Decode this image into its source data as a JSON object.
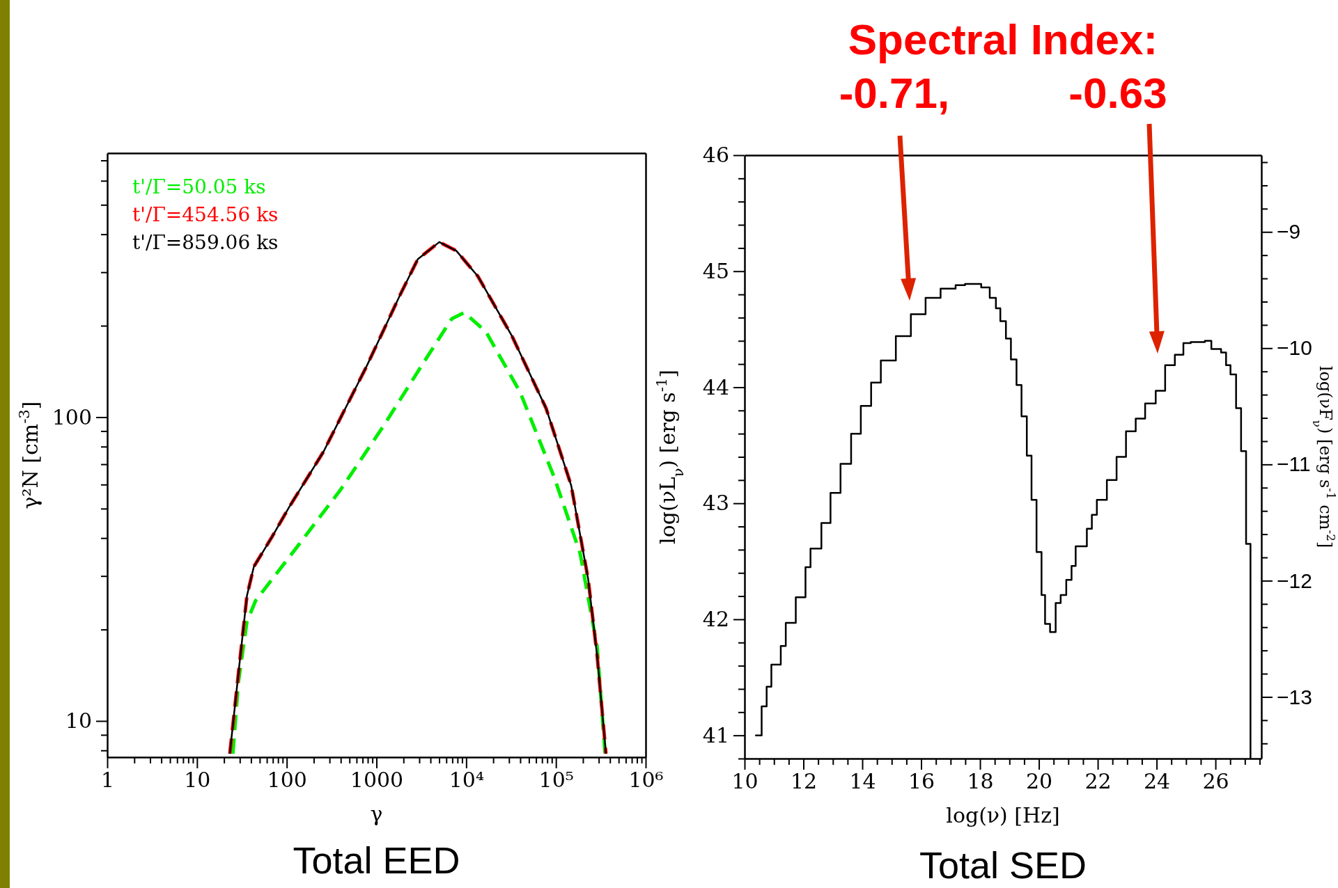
{
  "chart_data": [
    {
      "type": "line",
      "title": "Total EED",
      "xlabel": "γ",
      "ylabel": "γ²N [cm$^{-3}$]",
      "log": "xy",
      "legend": "top left",
      "xlim": [
        1,
        1000000
      ],
      "xticks": [
        1,
        {
          "value": 2,
          "label": null
        },
        {
          "value": 3,
          "label": null
        },
        {
          "value": 4,
          "label": null
        },
        {
          "value": 5,
          "label": null
        },
        {
          "value": 6,
          "label": null
        },
        {
          "value": 7,
          "label": null
        },
        {
          "value": 8,
          "label": null
        },
        {
          "value": 9,
          "label": null
        },
        10,
        {
          "value": 20,
          "label": null
        },
        {
          "value": 30,
          "label": null
        },
        {
          "value": 40,
          "label": null
        },
        {
          "value": 50,
          "label": null
        },
        {
          "value": 60,
          "label": null
        },
        {
          "value": 70,
          "label": null
        },
        {
          "value": 80,
          "label": null
        },
        {
          "value": 90,
          "label": null
        },
        100,
        {
          "value": 200,
          "label": null
        },
        {
          "value": 300,
          "label": null
        },
        {
          "value": 400,
          "label": null
        },
        {
          "value": 500,
          "label": null
        },
        {
          "value": 600,
          "label": null
        },
        {
          "value": 700,
          "label": null
        },
        {
          "value": 800,
          "label": null
        },
        {
          "value": 900,
          "label": null
        },
        1000,
        {
          "value": 2000,
          "label": null
        },
        {
          "value": 3000,
          "label": null
        },
        {
          "value": 4000,
          "label": null
        },
        {
          "value": 5000,
          "label": null
        },
        {
          "value": 6000,
          "label": null
        },
        {
          "value": 7000,
          "label": null
        },
        {
          "value": 8000,
          "label": null
        },
        {
          "value": 9000,
          "label": null
        },
        {
          "value": 10000,
          "label": "10⁴"
        },
        {
          "value": 20000,
          "label": null
        },
        {
          "value": 30000,
          "label": null
        },
        {
          "value": 40000,
          "label": null
        },
        {
          "value": 50000,
          "label": null
        },
        {
          "value": 60000,
          "label": null
        },
        {
          "value": 70000,
          "label": null
        },
        {
          "value": 80000,
          "label": null
        },
        {
          "value": 90000,
          "label": null
        },
        {
          "value": 100000,
          "label": "10⁵"
        },
        {
          "value": 200000,
          "label": null
        },
        {
          "value": 300000,
          "label": null
        },
        {
          "value": 400000,
          "label": null
        },
        {
          "value": 500000,
          "label": null
        },
        {
          "value": 600000,
          "label": null
        },
        {
          "value": 700000,
          "label": null
        },
        {
          "value": 800000,
          "label": null
        },
        {
          "value": 900000,
          "label": null
        },
        {
          "value": 1000000,
          "label": "10⁶"
        }
      ],
      "ylim": [
        7.6,
        740
      ],
      "yticks": [
        {
          "value": 8,
          "label": null
        },
        {
          "value": 9,
          "label": null
        },
        10,
        {
          "value": 20,
          "label": null
        },
        {
          "value": 30,
          "label": null
        },
        {
          "value": 40,
          "label": null
        },
        {
          "value": 50,
          "label": null
        },
        {
          "value": 60,
          "label": null
        },
        {
          "value": 70,
          "label": null
        },
        {
          "value": 80,
          "label": null
        },
        {
          "value": 90,
          "label": null
        },
        100,
        {
          "value": 200,
          "label": null
        },
        {
          "value": 300,
          "label": null
        },
        {
          "value": 400,
          "label": null
        },
        {
          "value": 500,
          "label": null
        },
        {
          "value": 600,
          "label": null
        },
        {
          "value": 700,
          "label": null
        }
      ],
      "series": [
        {
          "name": "t'/Γ=50.05 ks",
          "color": "#00ee00",
          "line_style": "dashed",
          "x": [
            25.1,
            29,
            36,
            45,
            135,
            398,
            1202,
            3631,
            6918,
            9550,
            16600,
            39810,
            95500,
            186200,
            288400,
            353000
          ],
          "values": [
            7.8,
            13.5,
            21.2,
            24.9,
            37.9,
            57.7,
            93.7,
            157,
            211,
            221,
            191,
            121,
            63.5,
            35.6,
            17.5,
            7.8
          ]
        },
        {
          "name": "t'/Γ=454.56 ks",
          "color": "#ff0000",
          "line_style": "dashed",
          "x": [
            23.2,
            29,
            36,
            43,
            69,
            107,
            257,
            776,
            1862,
            2884,
            5012,
            7762,
            13490,
            32360,
            77620,
            147900,
            229100,
            288400,
            361000
          ],
          "values": [
            7.8,
            14.4,
            25.8,
            32.2,
            40.5,
            50.7,
            77,
            147,
            255,
            331,
            377,
            353,
            291,
            185,
            107,
            59.6,
            29.2,
            16.3,
            7.8
          ]
        },
        {
          "name": "t'/Γ=859.06 ks",
          "color": "#000000",
          "line_style": "solid",
          "x": [
            23.2,
            29,
            36,
            43,
            69,
            107,
            257,
            776,
            1862,
            2884,
            5012,
            7762,
            13490,
            32360,
            77620,
            147900,
            229100,
            288400,
            361000
          ],
          "values": [
            7.8,
            14.4,
            25.8,
            32.2,
            40.5,
            50.7,
            77,
            147,
            255,
            331,
            377,
            353,
            291,
            185,
            107,
            59.6,
            29.2,
            16.3,
            7.8
          ]
        }
      ]
    },
    {
      "type": "step",
      "title": "Total SED",
      "xlabel": "log(ν) [Hz]",
      "ylabel": "log(νL$_{ν}$) [erg s$^{-1}$]",
      "y2label": "log(νF$_{ν}$) [erg s$^{-1}$ cm$^{-2}$]",
      "xlim": [
        10,
        27.56
      ],
      "xticks": [
        10,
        {
          "value": 10.5,
          "label": null
        },
        {
          "value": 11,
          "label": null
        },
        {
          "value": 11.5,
          "label": null
        },
        12,
        {
          "value": 12.5,
          "label": null
        },
        {
          "value": 13,
          "label": null
        },
        {
          "value": 13.5,
          "label": null
        },
        14,
        {
          "value": 14.5,
          "label": null
        },
        {
          "value": 15,
          "label": null
        },
        {
          "value": 15.5,
          "label": null
        },
        16,
        {
          "value": 16.5,
          "label": null
        },
        {
          "value": 17,
          "label": null
        },
        {
          "value": 17.5,
          "label": null
        },
        18,
        {
          "value": 18.5,
          "label": null
        },
        {
          "value": 19,
          "label": null
        },
        {
          "value": 19.5,
          "label": null
        },
        20,
        {
          "value": 20.5,
          "label": null
        },
        {
          "value": 21,
          "label": null
        },
        {
          "value": 21.5,
          "label": null
        },
        22,
        {
          "value": 22.5,
          "label": null
        },
        {
          "value": 23,
          "label": null
        },
        {
          "value": 23.5,
          "label": null
        },
        24,
        {
          "value": 24.5,
          "label": null
        },
        {
          "value": 25,
          "label": null
        },
        {
          "value": 25.5,
          "label": null
        },
        26,
        {
          "value": 26.5,
          "label": null
        },
        {
          "value": 27,
          "label": null
        },
        {
          "value": 27.5,
          "label": null
        }
      ],
      "ylim": [
        40.8,
        46
      ],
      "yticks": [
        {
          "value": 40.8,
          "label": null
        },
        41,
        {
          "value": 41.2,
          "label": null
        },
        {
          "value": 41.4,
          "label": null
        },
        {
          "value": 41.6,
          "label": null
        },
        {
          "value": 41.8,
          "label": null
        },
        42,
        {
          "value": 42.2,
          "label": null
        },
        {
          "value": 42.4,
          "label": null
        },
        {
          "value": 42.6,
          "label": null
        },
        {
          "value": 42.8,
          "label": null
        },
        43,
        {
          "value": 43.2,
          "label": null
        },
        {
          "value": 43.4,
          "label": null
        },
        {
          "value": 43.6,
          "label": null
        },
        {
          "value": 43.8,
          "label": null
        },
        44,
        {
          "value": 44.2,
          "label": null
        },
        {
          "value": 44.4,
          "label": null
        },
        {
          "value": 44.6,
          "label": null
        },
        {
          "value": 44.8,
          "label": null
        },
        45,
        {
          "value": 45.2,
          "label": null
        },
        {
          "value": 45.4,
          "label": null
        },
        {
          "value": 45.6,
          "label": null
        },
        {
          "value": 45.8,
          "label": null
        },
        46
      ],
      "y2lim": [
        -13.53,
        -8.34
      ],
      "y2ticks": [
        {
          "value": -13.4,
          "label": null
        },
        {
          "value": -13.2,
          "label": null
        },
        {
          "value": -13,
          "label": "−13"
        },
        {
          "value": -12.8,
          "label": null
        },
        {
          "value": -12.6,
          "label": null
        },
        {
          "value": -12.4,
          "label": null
        },
        {
          "value": -12.2,
          "label": null
        },
        {
          "value": -12,
          "label": "−12"
        },
        {
          "value": -11.8,
          "label": null
        },
        {
          "value": -11.6,
          "label": null
        },
        {
          "value": -11.4,
          "label": null
        },
        {
          "value": -11.2,
          "label": null
        },
        {
          "value": -11,
          "label": "−11"
        },
        {
          "value": -10.8,
          "label": null
        },
        {
          "value": -10.6,
          "label": null
        },
        {
          "value": -10.4,
          "label": null
        },
        {
          "value": -10.2,
          "label": null
        },
        {
          "value": -10,
          "label": "−10"
        },
        {
          "value": -9.8,
          "label": null
        },
        {
          "value": -9.6,
          "label": null
        },
        {
          "value": -9.4,
          "label": null
        },
        {
          "value": -9.2,
          "label": null
        },
        {
          "value": -9,
          "label": "−9"
        },
        {
          "value": -8.8,
          "label": null
        },
        {
          "value": -8.6,
          "label": null
        },
        {
          "value": -8.4,
          "label": null
        }
      ],
      "annotations": [
        "Spectral Index:",
        "-0.71,",
        "-0.63"
      ],
      "series": [
        {
          "color": "#000000",
          "x": [
            10.36,
            10.58,
            10.75,
            10.91,
            11.23,
            11.4,
            11.74,
            12.07,
            12.24,
            12.61,
            12.92,
            13.26,
            13.62,
            13.95,
            14.3,
            14.63,
            15.14,
            15.65,
            16.15,
            16.66,
            17.17,
            17.49,
            18.04,
            18.33,
            18.54,
            18.69,
            18.88,
            19.05,
            19.24,
            19.41,
            19.59,
            19.75,
            19.92,
            20.09,
            20.21,
            20.38,
            20.57,
            20.74,
            20.93,
            21.11,
            21.25,
            21.63,
            21.8,
            21.97,
            22.31,
            22.64,
            22.96,
            23.29,
            23.61,
            23.97,
            24.29,
            24.62,
            24.91,
            25.16,
            25.64,
            25.86,
            26.19,
            26.36,
            26.51,
            26.7,
            26.87,
            27.04,
            27.19
          ],
          "values": [
            41.0,
            41.25,
            41.42,
            41.61,
            41.77,
            41.97,
            42.19,
            42.45,
            42.61,
            42.83,
            43.09,
            43.34,
            43.6,
            43.84,
            44.04,
            44.23,
            44.44,
            44.63,
            44.77,
            44.85,
            44.88,
            44.89,
            44.86,
            44.77,
            44.68,
            44.57,
            44.42,
            44.24,
            44.02,
            43.75,
            43.41,
            43.03,
            42.58,
            42.21,
            41.96,
            41.89,
            42.14,
            42.21,
            42.34,
            42.46,
            42.63,
            42.78,
            42.9,
            43.03,
            43.2,
            43.4,
            43.62,
            43.73,
            43.86,
            43.97,
            44.19,
            44.28,
            44.38,
            44.39,
            44.4,
            44.33,
            44.3,
            44.19,
            44.11,
            43.82,
            43.45,
            42.65,
            40.8
          ]
        }
      ]
    }
  ]
}
